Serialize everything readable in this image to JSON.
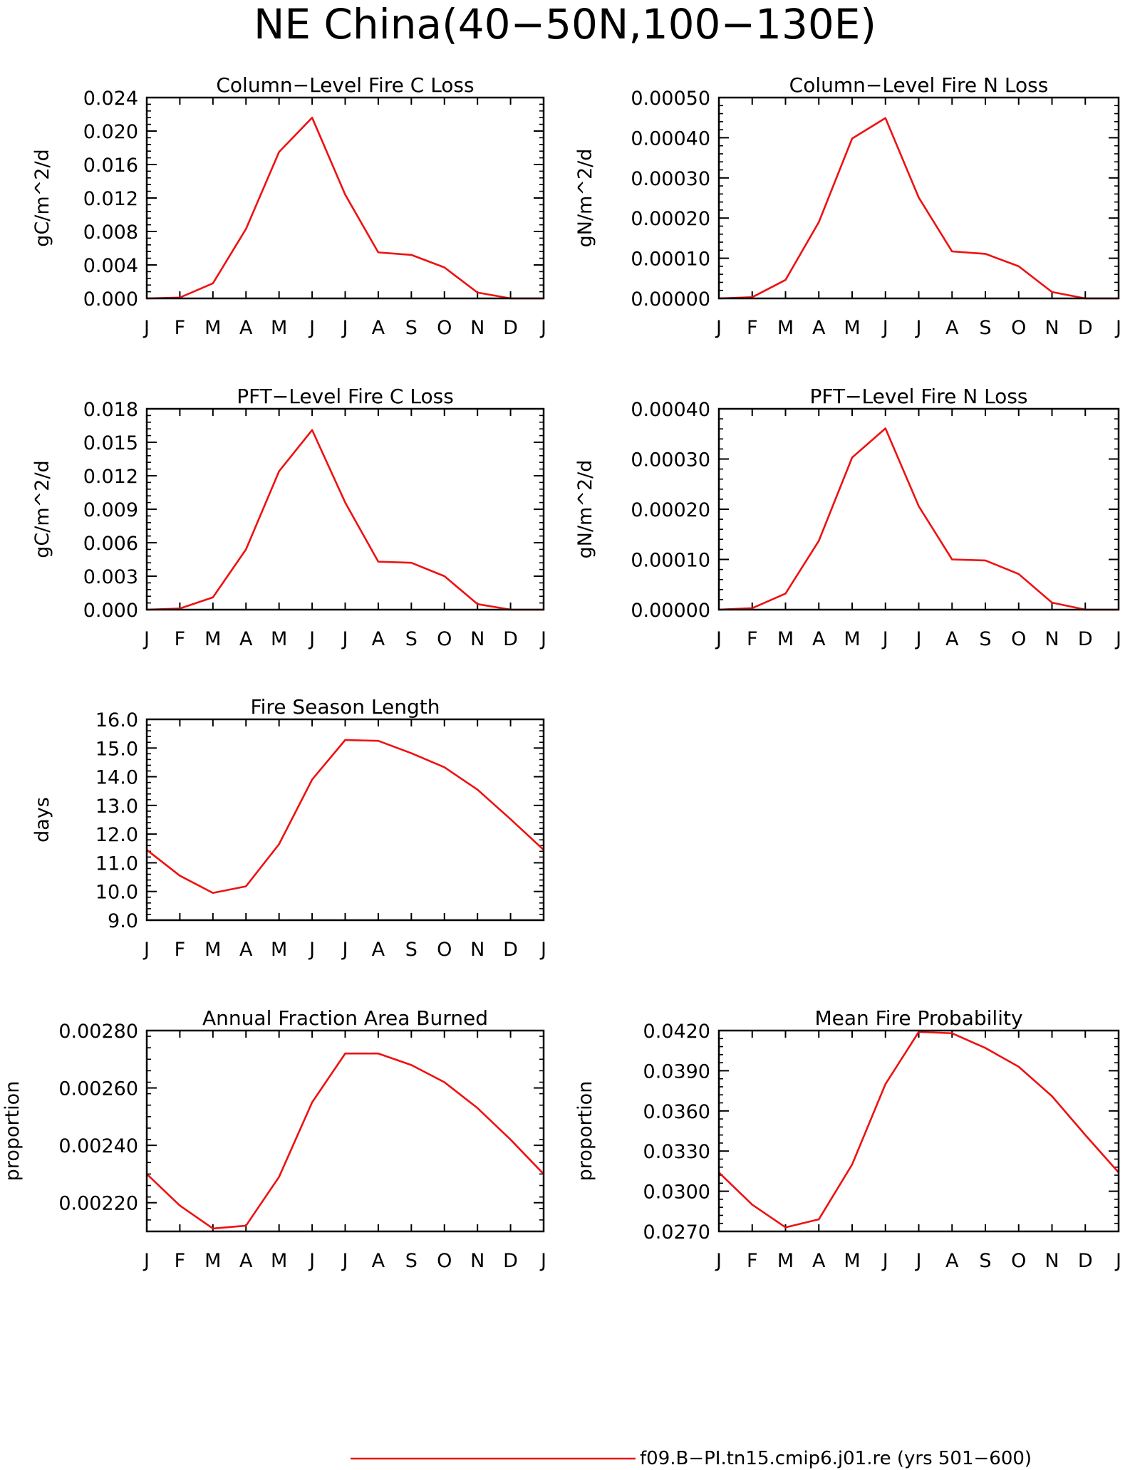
{
  "page_title": "NE China(40−50N,100−130E)",
  "legend": {
    "label": "f09.B−PI.tn15.cmip6.j01.re (yrs 501−600)",
    "color": "#ee1111"
  },
  "month_labels": [
    "J",
    "F",
    "M",
    "A",
    "M",
    "J",
    "J",
    "A",
    "S",
    "O",
    "N",
    "D",
    "J"
  ],
  "chart_data": [
    {
      "type": "line",
      "title": "Column−Level Fire C Loss",
      "ylabel": "gC/m^2/d",
      "categories": [
        "J",
        "F",
        "M",
        "A",
        "M",
        "J",
        "J",
        "A",
        "S",
        "O",
        "N",
        "D",
        "J"
      ],
      "ylim": [
        0,
        0.024
      ],
      "yticks": [
        "0.000",
        "0.004",
        "0.008",
        "0.012",
        "0.016",
        "0.020",
        "0.024"
      ],
      "series": [
        {
          "values": [
            0.0,
            0.0001,
            0.0018,
            0.0083,
            0.0175,
            0.0216,
            0.0124,
            0.0055,
            0.0052,
            0.0037,
            0.0007,
            0.0,
            0.0
          ]
        }
      ]
    },
    {
      "type": "line",
      "title": "Column−Level Fire N Loss",
      "ylabel": "gN/m^2/d",
      "categories": [
        "J",
        "F",
        "M",
        "A",
        "M",
        "J",
        "J",
        "A",
        "S",
        "O",
        "N",
        "D",
        "J"
      ],
      "ylim": [
        0,
        0.0005
      ],
      "yticks": [
        "0.00000",
        "0.00010",
        "0.00020",
        "0.00030",
        "0.00040",
        "0.00050"
      ],
      "series": [
        {
          "values": [
            0.0,
            3e-06,
            4.6e-05,
            0.00019,
            0.000398,
            0.000449,
            0.000251,
            0.000117,
            0.000111,
            8e-05,
            1.6e-05,
            0.0,
            0.0
          ]
        }
      ]
    },
    {
      "type": "line",
      "title": "PFT−Level Fire C Loss",
      "ylabel": "gC/m^2/d",
      "categories": [
        "J",
        "F",
        "M",
        "A",
        "M",
        "J",
        "J",
        "A",
        "S",
        "O",
        "N",
        "D",
        "J"
      ],
      "ylim": [
        0,
        0.018
      ],
      "yticks": [
        "0.000",
        "0.003",
        "0.006",
        "0.009",
        "0.012",
        "0.015",
        "0.018"
      ],
      "series": [
        {
          "values": [
            0.0,
            0.0001,
            0.0011,
            0.0054,
            0.0124,
            0.0161,
            0.0096,
            0.0043,
            0.0042,
            0.003,
            0.0005,
            0.0,
            0.0
          ]
        }
      ]
    },
    {
      "type": "line",
      "title": "PFT−Level Fire N Loss",
      "ylabel": "gN/m^2/d",
      "categories": [
        "J",
        "F",
        "M",
        "A",
        "M",
        "J",
        "J",
        "A",
        "S",
        "O",
        "N",
        "D",
        "J"
      ],
      "ylim": [
        0,
        0.0004
      ],
      "yticks": [
        "0.00000",
        "0.00010",
        "0.00020",
        "0.00030",
        "0.00040"
      ],
      "series": [
        {
          "values": [
            0.0,
            3e-06,
            3.2e-05,
            0.000137,
            0.000303,
            0.000361,
            0.000206,
            0.0001,
            9.8e-05,
            7.1e-05,
            1.4e-05,
            0.0,
            0.0
          ]
        }
      ]
    },
    {
      "type": "line",
      "title": "Fire Season Length",
      "ylabel": "days",
      "categories": [
        "J",
        "F",
        "M",
        "A",
        "M",
        "J",
        "J",
        "A",
        "S",
        "O",
        "N",
        "D",
        "J"
      ],
      "ylim": [
        9.0,
        16.0
      ],
      "yticks": [
        "9.0",
        "10.0",
        "11.0",
        "12.0",
        "13.0",
        "14.0",
        "15.0",
        "16.0"
      ],
      "series": [
        {
          "values": [
            11.45,
            10.55,
            9.95,
            10.18,
            11.65,
            13.9,
            15.28,
            15.25,
            14.82,
            14.33,
            13.55,
            12.52,
            11.45
          ]
        }
      ]
    },
    {
      "type": "line",
      "title": "Annual Fraction Area Burned",
      "ylabel": "proportion",
      "categories": [
        "J",
        "F",
        "M",
        "A",
        "M",
        "J",
        "J",
        "A",
        "S",
        "O",
        "N",
        "D",
        "J"
      ],
      "ylim": [
        0.0021,
        0.0028
      ],
      "yticks": [
        "0.00220",
        "0.00240",
        "0.00260",
        "0.00280"
      ],
      "series": [
        {
          "values": [
            0.0023,
            0.00219,
            0.00211,
            0.00212,
            0.00229,
            0.00255,
            0.00272,
            0.00272,
            0.00268,
            0.00262,
            0.00253,
            0.00242,
            0.0023
          ]
        }
      ]
    },
    {
      "type": "line",
      "title": "Mean Fire Probability",
      "ylabel": "proportion",
      "categories": [
        "J",
        "F",
        "M",
        "A",
        "M",
        "J",
        "J",
        "A",
        "S",
        "O",
        "N",
        "D",
        "J"
      ],
      "ylim": [
        0.027,
        0.042
      ],
      "yticks": [
        "0.0270",
        "0.0300",
        "0.0330",
        "0.0360",
        "0.0390",
        "0.0420"
      ],
      "series": [
        {
          "values": [
            0.0314,
            0.029,
            0.0273,
            0.0279,
            0.032,
            0.038,
            0.0419,
            0.0418,
            0.0407,
            0.0393,
            0.0371,
            0.0342,
            0.0314
          ]
        }
      ]
    }
  ]
}
